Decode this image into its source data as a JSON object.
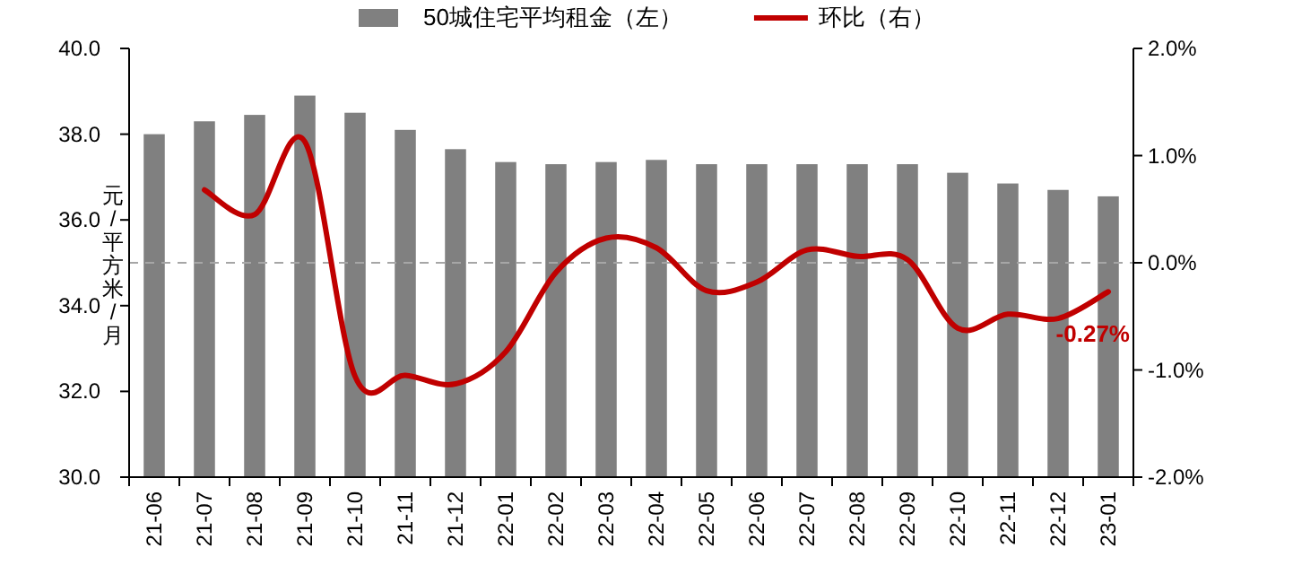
{
  "chart_data": {
    "type": "bar",
    "categories": [
      "21-06",
      "21-07",
      "21-08",
      "21-09",
      "21-10",
      "21-11",
      "21-12",
      "22-01",
      "22-02",
      "22-03",
      "22-04",
      "22-05",
      "22-06",
      "22-07",
      "22-08",
      "22-09",
      "22-10",
      "22-11",
      "22-12",
      "23-01"
    ],
    "series": [
      {
        "name": "50城住宅平均租金（左）",
        "color": "#808080",
        "values": [
          38.0,
          38.3,
          38.45,
          38.9,
          38.5,
          38.1,
          37.65,
          37.35,
          37.3,
          37.35,
          37.4,
          37.3,
          37.3,
          37.3,
          37.3,
          37.3,
          37.1,
          36.85,
          36.7,
          36.55
        ]
      },
      {
        "name": "环比（右）",
        "type": "line",
        "axis": "y2",
        "color": "#c00000",
        "values": [
          null,
          0.68,
          0.45,
          1.13,
          -1.06,
          -1.05,
          -1.13,
          -0.83,
          -0.09,
          0.23,
          0.14,
          -0.26,
          -0.18,
          0.12,
          0.06,
          0.03,
          -0.61,
          -0.48,
          -0.52,
          -0.27
        ]
      }
    ],
    "ylabel": "元/平方米/月",
    "ylim": [
      30,
      40
    ],
    "yticks": [
      {
        "value": 30,
        "label": "30.0"
      },
      {
        "value": 32,
        "label": "32.0"
      },
      {
        "value": 34,
        "label": "34.0"
      },
      {
        "value": 36,
        "label": "36.0"
      },
      {
        "value": 38,
        "label": "38.0"
      },
      {
        "value": 40,
        "label": "40.0"
      }
    ],
    "y2lim": [
      -2,
      2
    ],
    "y2ticks": [
      {
        "value": -2,
        "label": "-2.0%"
      },
      {
        "value": -1,
        "label": "-1.0%"
      },
      {
        "value": 0,
        "label": "0.0%"
      },
      {
        "value": 1,
        "label": "1.0%"
      },
      {
        "value": 2,
        "label": "2.0%"
      }
    ],
    "ref_lines": [
      {
        "axis": "y2",
        "value": 0,
        "color": "#a6a6a6",
        "line_style": "dashed"
      }
    ],
    "annotations": [
      "-0.27%"
    ],
    "legend": "top",
    "grid": false
  }
}
